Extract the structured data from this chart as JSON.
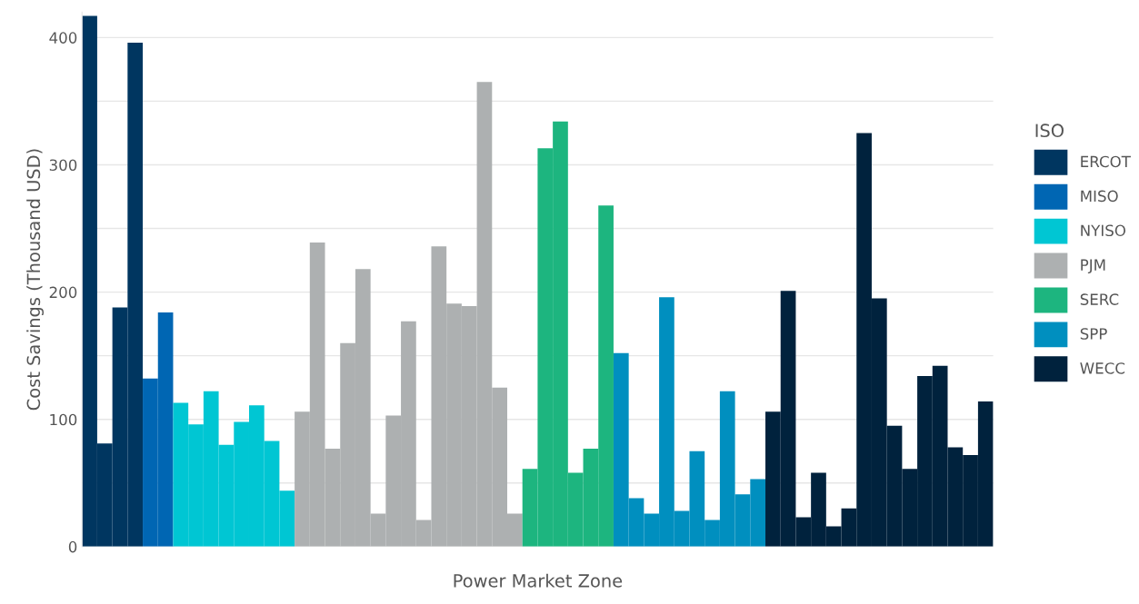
{
  "chart_data": {
    "type": "bar",
    "xlabel": "Power Market Zone",
    "ylabel": "Cost Savings (Thousand USD)",
    "legend_title": "ISO",
    "legend": "right",
    "grid": "y",
    "categories": [
      null,
      null,
      null,
      null,
      null,
      null,
      null,
      null,
      null,
      null,
      null,
      null,
      null,
      null,
      null,
      null,
      null,
      null,
      null,
      null,
      null,
      null,
      null,
      null,
      null,
      null,
      null,
      null,
      null,
      null,
      null,
      null,
      null,
      null,
      null,
      null,
      null,
      null,
      null,
      null,
      null,
      null,
      null,
      null,
      null,
      null,
      null,
      null,
      null,
      null,
      null,
      null,
      null,
      null,
      null,
      null,
      null,
      null,
      null,
      null
    ],
    "ylim": [
      0,
      420
    ],
    "yticks": [
      0,
      {
        "value": 50,
        "label": null
      },
      100,
      {
        "value": 150,
        "label": null
      },
      200,
      {
        "value": 250,
        "label": null
      },
      300,
      {
        "value": 350,
        "label": null
      },
      400
    ],
    "series": [
      {
        "name": "ERCOT",
        "color": "#003660",
        "values": [
          417,
          81,
          188,
          396,
          null,
          null,
          null,
          null,
          null,
          null,
          null,
          null,
          null,
          null,
          null,
          null,
          null,
          null,
          null,
          null,
          null,
          null,
          null,
          null,
          null,
          null,
          null,
          null,
          null,
          null,
          null,
          null,
          null,
          null,
          null,
          null,
          null,
          null,
          null,
          null,
          null,
          null,
          null,
          null,
          null,
          null,
          null,
          null,
          null,
          null,
          null,
          null,
          null,
          null,
          null,
          null,
          null,
          null,
          null,
          null
        ]
      },
      {
        "name": "MISO",
        "color": "#0066b3",
        "values": [
          null,
          null,
          null,
          null,
          132,
          184,
          null,
          null,
          null,
          null,
          null,
          null,
          null,
          null,
          null,
          null,
          null,
          null,
          null,
          null,
          null,
          null,
          null,
          null,
          null,
          null,
          null,
          null,
          null,
          null,
          null,
          null,
          null,
          null,
          null,
          null,
          null,
          null,
          null,
          null,
          null,
          null,
          null,
          null,
          null,
          null,
          null,
          null,
          null,
          null,
          null,
          null,
          null,
          null,
          null,
          null,
          null,
          null,
          null,
          null
        ]
      },
      {
        "name": "NYISO",
        "color": "#00c6d3",
        "values": [
          null,
          null,
          null,
          null,
          null,
          null,
          113,
          96,
          122,
          80,
          98,
          111,
          83,
          44,
          null,
          null,
          null,
          null,
          null,
          null,
          null,
          null,
          null,
          null,
          null,
          null,
          null,
          null,
          null,
          null,
          null,
          null,
          null,
          null,
          null,
          null,
          null,
          null,
          null,
          null,
          null,
          null,
          null,
          null,
          null,
          null,
          null,
          null,
          null,
          null,
          null,
          null,
          null,
          null,
          null,
          null,
          null,
          null,
          null,
          null
        ]
      },
      {
        "name": "PJM",
        "color": "#adb0b1",
        "values": [
          null,
          null,
          null,
          null,
          null,
          null,
          null,
          null,
          null,
          null,
          null,
          null,
          null,
          null,
          106,
          239,
          77,
          160,
          218,
          26,
          103,
          177,
          21,
          236,
          191,
          189,
          365,
          125,
          26,
          null,
          null,
          null,
          null,
          null,
          null,
          null,
          null,
          null,
          null,
          null,
          null,
          null,
          null,
          null,
          null,
          null,
          null,
          null,
          null,
          null,
          null,
          null,
          null,
          null,
          null,
          null,
          null,
          null,
          null,
          null
        ]
      },
      {
        "name": "SERC",
        "color": "#1db57f",
        "values": [
          null,
          null,
          null,
          null,
          null,
          null,
          null,
          null,
          null,
          null,
          null,
          null,
          null,
          null,
          null,
          null,
          null,
          null,
          null,
          null,
          null,
          null,
          null,
          null,
          null,
          null,
          null,
          null,
          null,
          61,
          313,
          334,
          58,
          77,
          268,
          null,
          null,
          null,
          null,
          null,
          null,
          null,
          null,
          null,
          null,
          null,
          null,
          null,
          null,
          null,
          null,
          null,
          null,
          null,
          null,
          null,
          null,
          null,
          null,
          null
        ]
      },
      {
        "name": "SPP",
        "color": "#008fbf",
        "values": [
          null,
          null,
          null,
          null,
          null,
          null,
          null,
          null,
          null,
          null,
          null,
          null,
          null,
          null,
          null,
          null,
          null,
          null,
          null,
          null,
          null,
          null,
          null,
          null,
          null,
          null,
          null,
          null,
          null,
          null,
          null,
          null,
          null,
          null,
          null,
          152,
          38,
          26,
          196,
          28,
          75,
          21,
          122,
          41,
          53,
          null,
          null,
          null,
          null,
          null,
          null,
          null,
          null,
          null,
          null,
          null,
          null,
          null,
          null,
          null
        ]
      },
      {
        "name": "WECC",
        "color": "#00223d",
        "values": [
          null,
          null,
          null,
          null,
          null,
          null,
          null,
          null,
          null,
          null,
          null,
          null,
          null,
          null,
          null,
          null,
          null,
          null,
          null,
          null,
          null,
          null,
          null,
          null,
          null,
          null,
          null,
          null,
          null,
          null,
          null,
          null,
          null,
          null,
          null,
          null,
          null,
          null,
          null,
          null,
          null,
          null,
          null,
          null,
          null,
          106,
          201,
          23,
          58,
          16,
          30,
          325,
          195,
          95,
          61,
          134,
          142,
          78,
          72,
          114
        ]
      }
    ]
  }
}
